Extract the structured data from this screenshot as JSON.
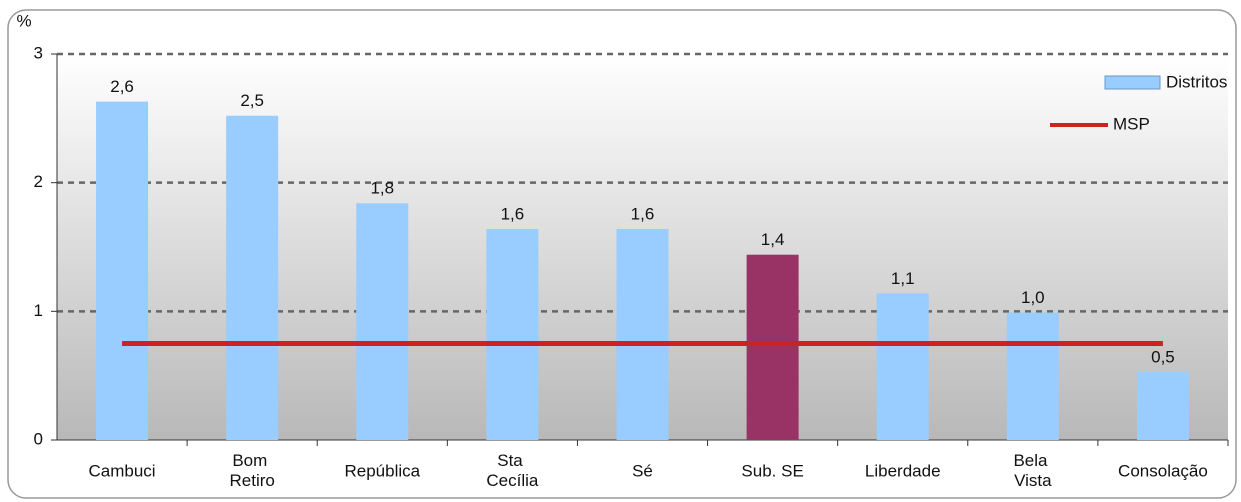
{
  "chart_data": {
    "type": "bar",
    "y_label": "%",
    "categories": [
      "Cambuci",
      "Bom Retiro",
      "República",
      "Sta Cecília",
      "Sé",
      "Sub. SE",
      "Liberdade",
      "Bela Vista",
      "Consolação"
    ],
    "series": [
      {
        "name": "Distritos",
        "color": "#99ccff",
        "colors": [
          "#99ccff",
          "#99ccff",
          "#99ccff",
          "#99ccff",
          "#99ccff",
          "#993366",
          "#99ccff",
          "#99ccff",
          "#99ccff"
        ],
        "values": [
          2.63,
          2.52,
          1.84,
          1.64,
          1.64,
          1.44,
          1.14,
          0.99,
          0.53
        ],
        "value_labels": [
          "2,6",
          "2,5",
          "1,8",
          "1,6",
          "1,6",
          "1,4",
          "1,1",
          "1,0",
          "0,5"
        ]
      },
      {
        "name": "MSP",
        "type": "line",
        "color": "#cc2222",
        "value": 0.75
      }
    ],
    "ylim": [
      0,
      3
    ],
    "yticks": [
      0,
      1,
      2,
      3
    ],
    "grid": true,
    "legend": "top-right"
  }
}
